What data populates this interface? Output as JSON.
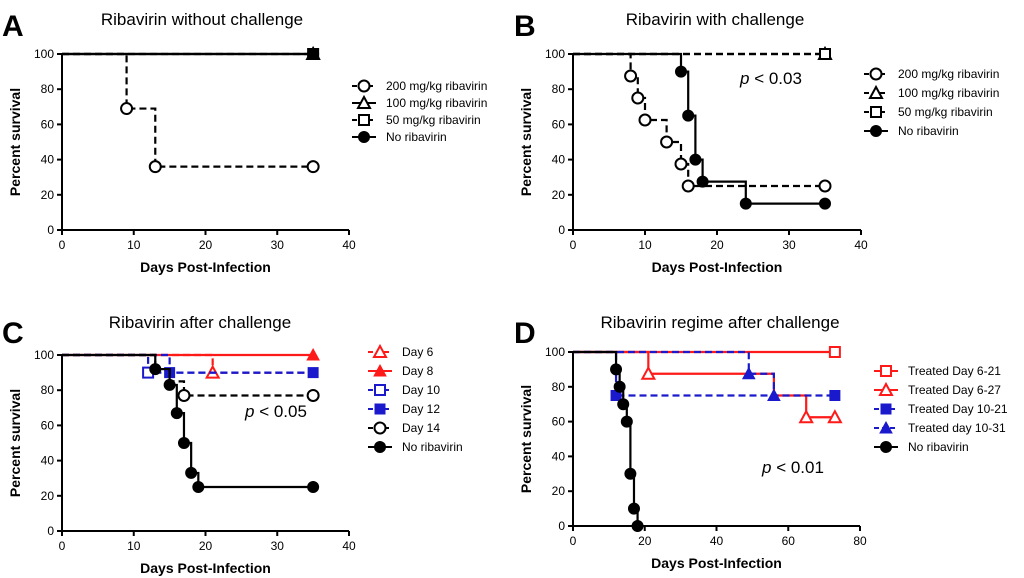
{
  "chart_data": [
    {
      "panel": "A",
      "type": "line",
      "subtype": "kaplan-meier",
      "title": "Ribavirin without challenge",
      "xlabel": "Days Post-Infection",
      "ylabel": "Percent survival",
      "xlim": [
        0,
        40
      ],
      "ylim": [
        0,
        100
      ],
      "xticks": [
        0,
        10,
        20,
        30,
        40
      ],
      "yticks": [
        0,
        20,
        40,
        60,
        80,
        100
      ],
      "pvalue": null,
      "series": [
        {
          "name": "200 mg/kg ribavirin",
          "color": "#000000",
          "dash": true,
          "marker": "circle-open",
          "steps": [
            [
              0,
              100
            ],
            [
              9,
              69
            ],
            [
              13,
              36
            ],
            [
              35,
              36
            ]
          ],
          "markers": [
            [
              9,
              69
            ],
            [
              13,
              36
            ],
            [
              35,
              36
            ]
          ]
        },
        {
          "name": "100 mg/kg ribavirin",
          "color": "#000000",
          "dash": false,
          "marker": "triangle-open",
          "steps": [
            [
              0,
              100
            ],
            [
              35,
              100
            ]
          ],
          "markers": [
            [
              35,
              100
            ]
          ]
        },
        {
          "name": "50 mg/kg ribavirin",
          "color": "#000000",
          "dash": true,
          "marker": "square-open",
          "steps": [
            [
              0,
              100
            ],
            [
              35,
              100
            ]
          ],
          "markers": [
            [
              35,
              100
            ]
          ]
        },
        {
          "name": "No ribavirin",
          "color": "#000000",
          "dash": false,
          "marker": "circle-filled",
          "steps": [
            [
              0,
              100
            ],
            [
              35,
              100
            ]
          ],
          "markers": [
            [
              35,
              100
            ]
          ]
        }
      ]
    },
    {
      "panel": "B",
      "type": "line",
      "subtype": "kaplan-meier",
      "title": "Ribavirin with challenge",
      "xlabel": "Days Post-Infection",
      "ylabel": "Percent survival",
      "xlim": [
        0,
        40
      ],
      "ylim": [
        0,
        100
      ],
      "xticks": [
        0,
        10,
        20,
        30,
        40
      ],
      "yticks": [
        0,
        20,
        40,
        60,
        80,
        100
      ],
      "pvalue": {
        "prefix": "p",
        "text": " < 0.03"
      },
      "series": [
        {
          "name": "200 mg/kg ribavirin",
          "color": "#000000",
          "dash": true,
          "marker": "circle-open",
          "steps": [
            [
              0,
              100
            ],
            [
              8,
              87.5
            ],
            [
              9,
              75
            ],
            [
              10,
              62.5
            ],
            [
              13,
              50
            ],
            [
              15,
              37.5
            ],
            [
              16,
              25
            ],
            [
              35,
              25
            ]
          ],
          "markers": [
            [
              8,
              87.5
            ],
            [
              9,
              75
            ],
            [
              10,
              62.5
            ],
            [
              13,
              50
            ],
            [
              15,
              37.5
            ],
            [
              16,
              25
            ],
            [
              35,
              25
            ]
          ]
        },
        {
          "name": "100 mg/kg ribavirin",
          "color": "#000000",
          "dash": true,
          "marker": "triangle-open",
          "steps": [
            [
              0,
              100
            ],
            [
              35,
              100
            ]
          ],
          "markers": [
            [
              35,
              100
            ]
          ]
        },
        {
          "name": "50 mg/kg ribavirin",
          "color": "#000000",
          "dash": true,
          "marker": "square-open",
          "steps": [
            [
              0,
              100
            ],
            [
              35,
              100
            ]
          ],
          "markers": [
            [
              35,
              100
            ]
          ]
        },
        {
          "name": "No ribavirin",
          "color": "#000000",
          "dash": false,
          "marker": "circle-filled",
          "steps": [
            [
              0,
              100
            ],
            [
              15,
              90
            ],
            [
              16,
              65
            ],
            [
              17,
              40
            ],
            [
              18,
              27.5
            ],
            [
              24,
              15
            ],
            [
              35,
              15
            ]
          ],
          "markers": [
            [
              15,
              90
            ],
            [
              16,
              65
            ],
            [
              17,
              40
            ],
            [
              18,
              27.5
            ],
            [
              24,
              15
            ],
            [
              35,
              15
            ]
          ]
        }
      ]
    },
    {
      "panel": "C",
      "type": "line",
      "subtype": "kaplan-meier",
      "title": "Ribavirin after challenge",
      "xlabel": "Days Post-Infection",
      "ylabel": "Percent survival",
      "xlim": [
        0,
        40
      ],
      "ylim": [
        0,
        100
      ],
      "xticks": [
        0,
        10,
        20,
        30,
        40
      ],
      "yticks": [
        0,
        20,
        40,
        60,
        80,
        100
      ],
      "pvalue": {
        "prefix": "p",
        "text": " < 0.05"
      },
      "series": [
        {
          "name": "Day 6",
          "color": "#ff1a1a",
          "dash": true,
          "marker": "triangle-open",
          "steps": [
            [
              0,
              100
            ],
            [
              21,
              90
            ],
            [
              35,
              90
            ]
          ],
          "markers": [
            [
              21,
              90
            ]
          ]
        },
        {
          "name": "Day 8",
          "color": "#ff1a1a",
          "dash": false,
          "marker": "triangle-filled",
          "steps": [
            [
              0,
              100
            ],
            [
              35,
              100
            ]
          ],
          "markers": [
            [
              35,
              100
            ]
          ]
        },
        {
          "name": "Day 10",
          "color": "#1a1acc",
          "dash": true,
          "marker": "square-open",
          "steps": [
            [
              0,
              100
            ],
            [
              12,
              90
            ],
            [
              35,
              90
            ]
          ],
          "markers": [
            [
              12,
              90
            ]
          ]
        },
        {
          "name": "Day 12",
          "color": "#1a1acc",
          "dash": true,
          "marker": "square-filled",
          "steps": [
            [
              0,
              100
            ],
            [
              15,
              90
            ],
            [
              35,
              90
            ]
          ],
          "markers": [
            [
              15,
              90
            ],
            [
              35,
              90
            ]
          ]
        },
        {
          "name": "Day 14",
          "color": "#000000",
          "dash": true,
          "marker": "circle-open",
          "steps": [
            [
              0,
              100
            ],
            [
              13,
              92
            ],
            [
              15,
              85
            ],
            [
              17,
              77
            ],
            [
              35,
              77
            ]
          ],
          "markers": [
            [
              17,
              77
            ],
            [
              35,
              77
            ]
          ]
        },
        {
          "name": "No ribavirin",
          "color": "#000000",
          "dash": false,
          "marker": "circle-filled",
          "steps": [
            [
              0,
              100
            ],
            [
              13,
              92
            ],
            [
              15,
              83
            ],
            [
              16,
              67
            ],
            [
              17,
              50
            ],
            [
              18,
              33
            ],
            [
              19,
              25
            ],
            [
              35,
              25
            ]
          ],
          "markers": [
            [
              13,
              92
            ],
            [
              15,
              83
            ],
            [
              16,
              67
            ],
            [
              17,
              50
            ],
            [
              18,
              33
            ],
            [
              19,
              25
            ],
            [
              35,
              25
            ]
          ]
        }
      ]
    },
    {
      "panel": "D",
      "type": "line",
      "subtype": "kaplan-meier",
      "title": "Ribavirin regime after challenge",
      "xlabel": "Days Post-Infection",
      "ylabel": "Percent survival",
      "xlim": [
        0,
        80
      ],
      "ylim": [
        0,
        100
      ],
      "xticks": [
        0,
        20,
        40,
        60,
        80
      ],
      "yticks": [
        0,
        20,
        40,
        60,
        80,
        100
      ],
      "pvalue": {
        "prefix": "p",
        "text": " < 0.01"
      },
      "series": [
        {
          "name": "Treated Day 6-21",
          "color": "#ff1a1a",
          "dash": false,
          "marker": "square-open",
          "steps": [
            [
              0,
              100
            ],
            [
              73,
              100
            ]
          ],
          "markers": [
            [
              73,
              100
            ]
          ]
        },
        {
          "name": "Treated Day 6-27",
          "color": "#ff1a1a",
          "dash": false,
          "marker": "triangle-open",
          "steps": [
            [
              0,
              100
            ],
            [
              21,
              87.5
            ],
            [
              56,
              75
            ],
            [
              65,
              62.5
            ],
            [
              73,
              62.5
            ]
          ],
          "markers": [
            [
              21,
              87.5
            ],
            [
              65,
              62.5
            ],
            [
              73,
              62.5
            ]
          ]
        },
        {
          "name": "Treated Day 10-21",
          "color": "#1a1acc",
          "dash": true,
          "marker": "square-filled",
          "steps": [
            [
              0,
              100
            ],
            [
              12,
              75
            ],
            [
              73,
              75
            ]
          ],
          "markers": [
            [
              12,
              75
            ],
            [
              73,
              75
            ]
          ]
        },
        {
          "name": "Treated day 10-31",
          "color": "#1a1acc",
          "dash": true,
          "marker": "triangle-filled",
          "steps": [
            [
              0,
              100
            ],
            [
              49,
              87.5
            ],
            [
              56,
              75
            ]
          ],
          "markers": [
            [
              49,
              87.5
            ],
            [
              56,
              75
            ]
          ]
        },
        {
          "name": "No ribavirin",
          "color": "#000000",
          "dash": false,
          "marker": "circle-filled",
          "steps": [
            [
              0,
              100
            ],
            [
              12,
              90
            ],
            [
              13,
              80
            ],
            [
              14,
              70
            ],
            [
              15,
              60
            ],
            [
              16,
              30
            ],
            [
              17,
              10
            ],
            [
              18,
              0
            ]
          ],
          "markers": [
            [
              12,
              90
            ],
            [
              13,
              80
            ],
            [
              14,
              70
            ],
            [
              15,
              60
            ],
            [
              16,
              30
            ],
            [
              17,
              10
            ],
            [
              18,
              0
            ]
          ]
        }
      ]
    }
  ]
}
